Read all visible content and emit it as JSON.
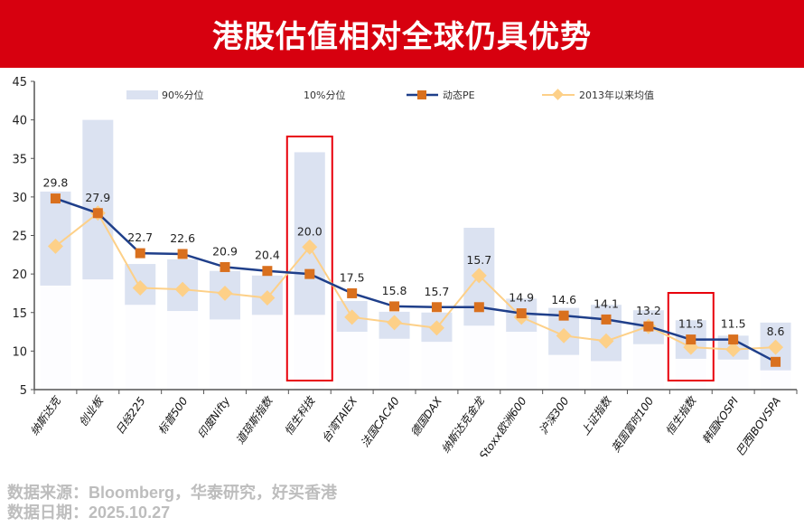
{
  "title": "港股估值相对全球仍具优势",
  "chart_data": {
    "type": "line",
    "ylim": [
      5,
      45
    ],
    "yticks": [
      5,
      10,
      15,
      20,
      25,
      30,
      35,
      40,
      45
    ],
    "grid": false,
    "legend_position": "top",
    "categories": [
      "纳斯达克",
      "创业板",
      "日经225",
      "标普500",
      "印度Nifty",
      "道琼斯指数",
      "恒生科技",
      "台湾TAIEX",
      "法国CAC40",
      "德国DAX",
      "纳斯达克金龙",
      "Stoxx欧洲600",
      "沪深300",
      "上证指数",
      "英国富时100",
      "恒生指数",
      "韩国KOSPI",
      "巴西IBOVSPA"
    ],
    "legend": {
      "p90": "90%分位",
      "p10": "10%分位",
      "pe": "动态PE",
      "mean": "2013年以来均值"
    },
    "p90": [
      30.7,
      40.0,
      21.3,
      21.9,
      20.4,
      19.8,
      35.8,
      16.5,
      15.1,
      15.0,
      26.0,
      16.8,
      15.6,
      16.0,
      15.3,
      14.0,
      12.0,
      13.7
    ],
    "p10": [
      18.5,
      19.3,
      16.0,
      15.2,
      14.1,
      14.7,
      14.7,
      12.5,
      11.6,
      11.2,
      13.3,
      12.5,
      9.5,
      8.7,
      10.9,
      9.0,
      8.9,
      7.5
    ],
    "pe": [
      29.8,
      27.9,
      22.7,
      22.6,
      20.9,
      20.4,
      20.0,
      17.5,
      15.8,
      15.7,
      15.7,
      14.9,
      14.6,
      14.1,
      13.2,
      11.5,
      11.5,
      8.6
    ],
    "pe_labels": [
      "29.8",
      "27.9",
      "22.7",
      "22.6",
      "20.9",
      "20.4",
      "20.0",
      "17.5",
      "15.8",
      "15.7",
      "15.7",
      "14.9",
      "14.6",
      "14.1",
      "13.2",
      "11.5",
      "11.5",
      "8.6"
    ],
    "mean_since_2013": [
      23.6,
      27.9,
      18.2,
      18.0,
      17.5,
      16.9,
      23.5,
      14.4,
      13.7,
      13.0,
      19.8,
      14.4,
      12.0,
      11.3,
      13.2,
      10.5,
      10.2,
      10.5
    ],
    "highlighted": [
      "恒生科技",
      "恒生指数"
    ],
    "colors": {
      "band": "#dbe2f1",
      "pe_line": "#1f3f8a",
      "pe_marker": "#d9701e",
      "mean": "#fdd088",
      "highlight": "#e8000b"
    }
  },
  "footer": {
    "source": "数据来源：Bloomberg，华泰研究，好买香港",
    "date": "数据日期：2025.10.27"
  }
}
